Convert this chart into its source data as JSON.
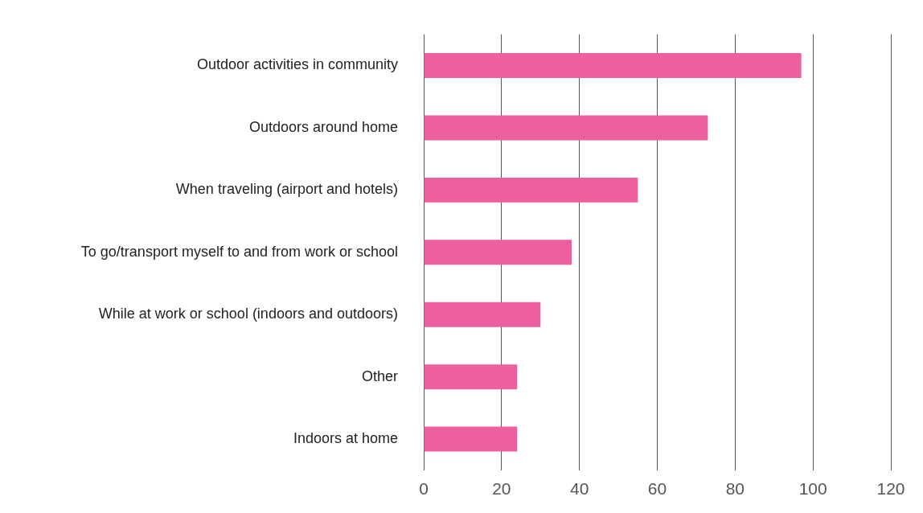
{
  "chart_data": {
    "type": "bar",
    "orientation": "horizontal",
    "categories": [
      "Outdoor activities in community",
      "Outdoors around home",
      "When traveling (airport and hotels)",
      "To go/transport myself to and from work or school",
      "While at work or school (indoors and outdoors)",
      "Other",
      "Indoors at home"
    ],
    "values": [
      97,
      73,
      55,
      38,
      30,
      24,
      24
    ],
    "color": "#ee5fa0",
    "xlim": [
      0,
      120
    ],
    "xticks": [
      0,
      20,
      40,
      60,
      80,
      100,
      120
    ],
    "grid": "x",
    "legend": false
  }
}
